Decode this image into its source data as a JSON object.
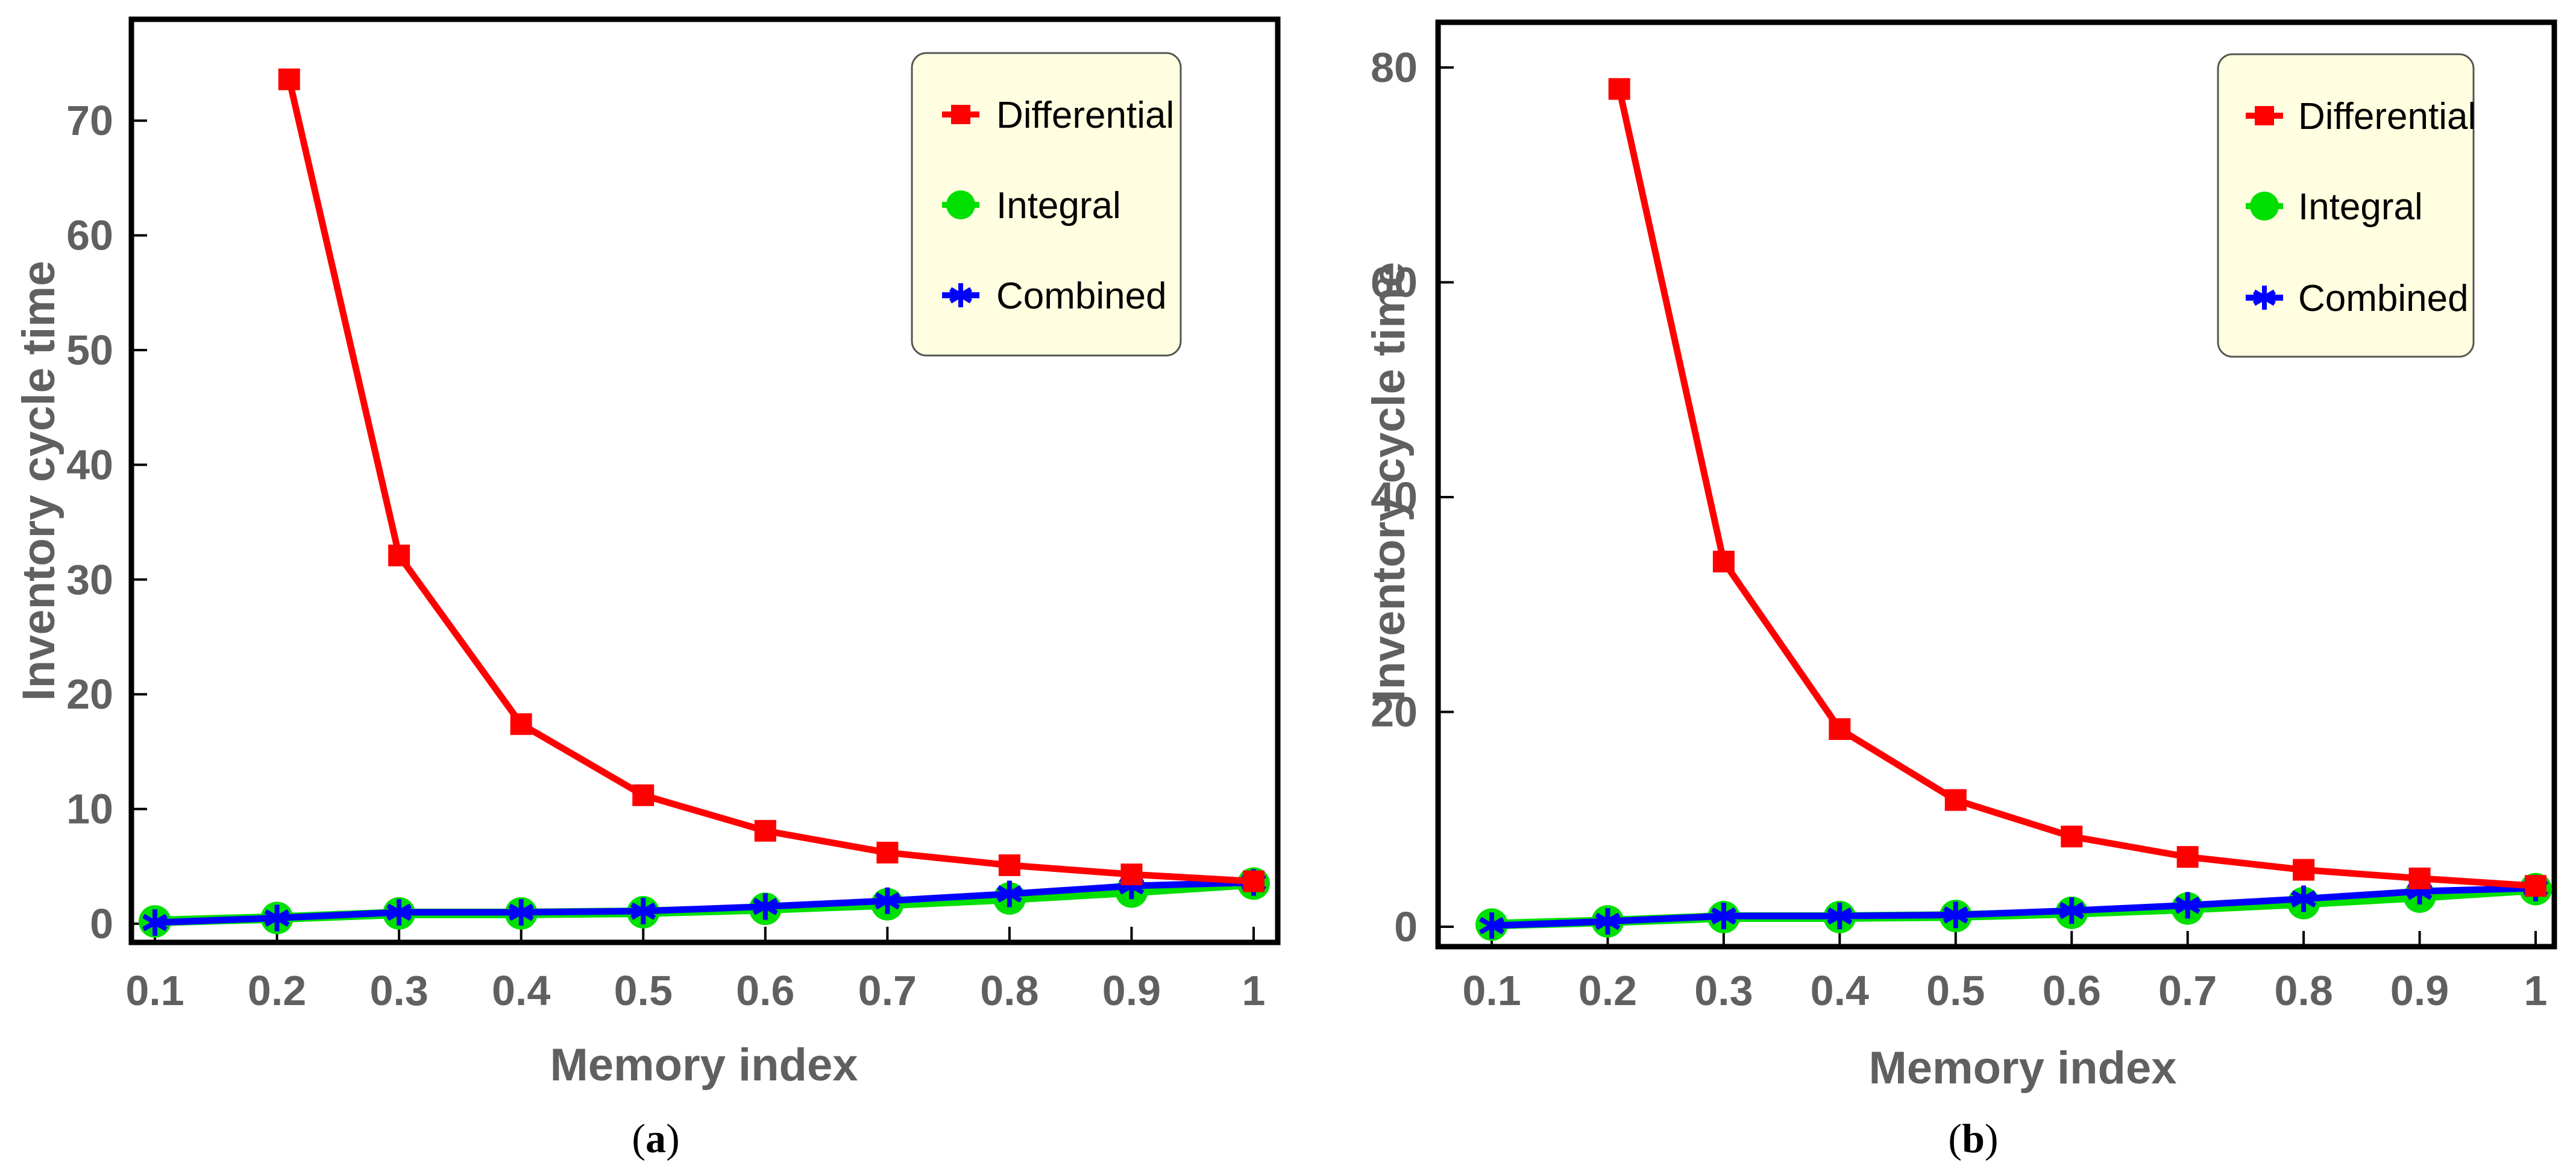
{
  "chart_data": [
    {
      "type": "line",
      "panel_label_prefix": "(",
      "panel_label_letter": "a",
      "panel_label_suffix": ")",
      "xlabel": "Memory index",
      "ylabel": "Inventory cycle time",
      "xlim": [
        0.1,
        1
      ],
      "ylim": [
        0,
        75
      ],
      "xticks": [
        0.1,
        0.2,
        0.3,
        0.4,
        0.5,
        0.6,
        0.7,
        0.8,
        0.9,
        1
      ],
      "xtick_labels": [
        "0.1",
        "0.2",
        "0.3",
        "0.4",
        "0.5",
        "0.6",
        "0.7",
        "0.8",
        "0.9",
        "1"
      ],
      "yticks": [
        0,
        10,
        20,
        30,
        40,
        50,
        60,
        70
      ],
      "ytick_labels": [
        "0",
        "10",
        "20",
        "30",
        "40",
        "50",
        "60",
        "70"
      ],
      "legend_position": "top-right",
      "series": [
        {
          "name": "Differential",
          "color": "#ff0000",
          "marker": "square",
          "x": [
            0.21,
            0.3,
            0.4,
            0.5,
            0.6,
            0.7,
            0.8,
            0.9,
            1
          ],
          "y": [
            73.6,
            32.1,
            17.4,
            11.2,
            8.1,
            6.2,
            5.1,
            4.3,
            3.7
          ]
        },
        {
          "name": "Integral",
          "color": "#00e000",
          "marker": "circle",
          "x": [
            0.1,
            0.2,
            0.3,
            0.4,
            0.5,
            0.6,
            0.7,
            0.8,
            0.9,
            1
          ],
          "y": [
            0.2,
            0.5,
            0.9,
            0.9,
            1.0,
            1.3,
            1.7,
            2.2,
            2.8,
            3.5
          ]
        },
        {
          "name": "Combined",
          "color": "#0000ff",
          "marker": "star",
          "x": [
            0.1,
            0.2,
            0.3,
            0.4,
            0.5,
            0.6,
            0.7,
            0.8,
            0.9,
            1
          ],
          "y": [
            0.1,
            0.5,
            1.0,
            1.0,
            1.1,
            1.5,
            2.0,
            2.6,
            3.3,
            3.6
          ]
        }
      ]
    },
    {
      "type": "line",
      "panel_label_prefix": "(",
      "panel_label_letter": "b",
      "panel_label_suffix": ")",
      "xlabel": "Memory index",
      "ylabel": "Inventory cycle time",
      "xlim": [
        0.1,
        1
      ],
      "ylim": [
        0,
        80
      ],
      "xticks": [
        0.1,
        0.2,
        0.3,
        0.4,
        0.5,
        0.6,
        0.7,
        0.8,
        0.9,
        1
      ],
      "xtick_labels": [
        "0.1",
        "0.2",
        "0.3",
        "0.4",
        "0.5",
        "0.6",
        "0.7",
        "0.8",
        "0.9",
        "1"
      ],
      "yticks": [
        0,
        20,
        40,
        60,
        80
      ],
      "ytick_labels": [
        "0",
        "20",
        "40",
        "60",
        "80"
      ],
      "legend_position": "top-right",
      "series": [
        {
          "name": "Differential",
          "color": "#ff0000",
          "marker": "square",
          "x": [
            0.21,
            0.3,
            0.4,
            0.5,
            0.6,
            0.7,
            0.8,
            0.9,
            1
          ],
          "y": [
            78.0,
            34.0,
            18.4,
            11.8,
            8.4,
            6.5,
            5.3,
            4.5,
            3.8
          ]
        },
        {
          "name": "Integral",
          "color": "#00e000",
          "marker": "circle",
          "x": [
            0.1,
            0.2,
            0.3,
            0.4,
            0.5,
            0.6,
            0.7,
            0.8,
            0.9,
            1
          ],
          "y": [
            0.2,
            0.5,
            0.9,
            0.9,
            1.0,
            1.3,
            1.7,
            2.2,
            2.8,
            3.5
          ]
        },
        {
          "name": "Combined",
          "color": "#0000ff",
          "marker": "star",
          "x": [
            0.1,
            0.2,
            0.3,
            0.4,
            0.5,
            0.6,
            0.7,
            0.8,
            0.9,
            1
          ],
          "y": [
            0.1,
            0.5,
            1.0,
            1.0,
            1.1,
            1.5,
            2.0,
            2.6,
            3.3,
            3.6
          ]
        }
      ]
    }
  ]
}
